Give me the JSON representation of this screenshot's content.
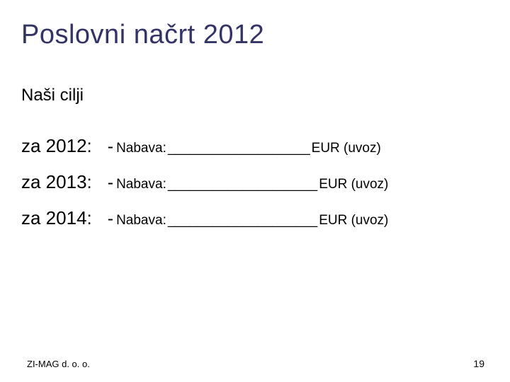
{
  "title": "Poslovni načrt 2012",
  "subtitle": "Naši cilji",
  "goals": [
    {
      "year": "za 2012:",
      "dash": "-",
      "label": "Nabava:",
      "blank": "___________________",
      "currency": "EUR (uvoz)"
    },
    {
      "year": "za 2013:",
      "dash": "-",
      "label": "Nabava:",
      "blank": "____________________",
      "currency": "EUR  (uvoz)"
    },
    {
      "year": "za 2014:",
      "dash": "-",
      "label": "Nabava:",
      "blank": "____________________",
      "currency": "EUR   (uvoz)"
    }
  ],
  "footer": {
    "company": "ZI-MAG d. o. o.",
    "page": "19"
  },
  "colors": {
    "title_color": "#333366",
    "text_color": "#000000",
    "background": "#ffffff"
  },
  "typography": {
    "title_fontsize": 38,
    "subtitle_fontsize": 24,
    "year_fontsize": 26,
    "detail_fontsize": 19,
    "footer_fontsize": 13
  }
}
